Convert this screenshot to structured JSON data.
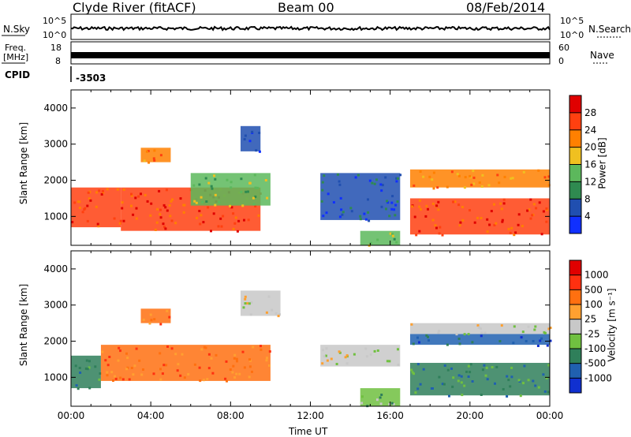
{
  "header": {
    "station": "Clyde River (fitACF)",
    "beam": "Beam 00",
    "date": "08/Feb/2014"
  },
  "top_panels": {
    "nsky": {
      "left_label": "N.Sky",
      "right_label": "N.Search",
      "y_ticks_left": [
        "10^5",
        "10^0"
      ],
      "y_ticks_right": [
        "10^5",
        "10^0"
      ]
    },
    "freq": {
      "left_label_1": "Freq.",
      "left_label_2": "[MHz]",
      "right_label": "Nave",
      "y_ticks_left": [
        "18",
        "8"
      ],
      "y_ticks_right": [
        "60",
        "0"
      ]
    },
    "cpid": {
      "label": "CPID",
      "value": "-3503"
    }
  },
  "chart_data": [
    {
      "type": "heatmap",
      "name": "power",
      "ylabel": "Slant Range [km]",
      "ylim": [
        200,
        4500
      ],
      "y_ticks": [
        1000,
        2000,
        3000,
        4000
      ],
      "colorbar": {
        "label": "Power [dB]",
        "ticks": [
          "4",
          "8",
          "12",
          "16",
          "20",
          "24",
          "28"
        ],
        "colors": [
          "#1030ff",
          "#204fb0",
          "#2f8a50",
          "#5cb85c",
          "#f0c020",
          "#ff8000",
          "#ff4010",
          "#e00000"
        ]
      },
      "regions": [
        {
          "t0": 0.0,
          "t1": 2.5,
          "r0": 700,
          "r1": 1800,
          "level": 6
        },
        {
          "t0": 2.5,
          "t1": 9.5,
          "r0": 600,
          "r1": 1800,
          "level": 6
        },
        {
          "t0": 3.5,
          "t1": 5.0,
          "r0": 2500,
          "r1": 2900,
          "level": 5
        },
        {
          "t0": 6.0,
          "t1": 10.0,
          "r0": 1300,
          "r1": 2200,
          "level": 3
        },
        {
          "t0": 8.5,
          "t1": 9.5,
          "r0": 2800,
          "r1": 3500,
          "level": 1
        },
        {
          "t0": 12.5,
          "t1": 16.5,
          "r0": 900,
          "r1": 2200,
          "level": 1
        },
        {
          "t0": 14.5,
          "t1": 16.5,
          "r0": 200,
          "r1": 600,
          "level": 3
        },
        {
          "t0": 17.0,
          "t1": 24.0,
          "r0": 500,
          "r1": 1500,
          "level": 6
        },
        {
          "t0": 17.0,
          "t1": 24.0,
          "r0": 1800,
          "r1": 2300,
          "level": 5
        }
      ]
    },
    {
      "type": "heatmap",
      "name": "velocity",
      "ylabel": "Slant Range [km]",
      "ylim": [
        200,
        4500
      ],
      "y_ticks": [
        1000,
        2000,
        3000,
        4000
      ],
      "colorbar": {
        "label": "Velocity [m s⁻¹]",
        "ticks": [
          "1000",
          "500",
          "100",
          "25",
          "-25",
          "-100",
          "-500",
          "-1000"
        ],
        "colors": [
          "#1030d0",
          "#2060b0",
          "#2f7f5a",
          "#70c040",
          "#c8c8c8",
          "#ffa030",
          "#ff7010",
          "#ff3010",
          "#e00000"
        ]
      },
      "regions": [
        {
          "t0": 0.0,
          "t1": 1.5,
          "r0": 700,
          "r1": 1600,
          "level": 2
        },
        {
          "t0": 1.5,
          "t1": 10.0,
          "r0": 900,
          "r1": 1900,
          "level": 6
        },
        {
          "t0": 3.5,
          "t1": 5.0,
          "r0": 2500,
          "r1": 2900,
          "level": 6
        },
        {
          "t0": 8.5,
          "t1": 10.5,
          "r0": 2700,
          "r1": 3400,
          "level": 4
        },
        {
          "t0": 12.5,
          "t1": 16.5,
          "r0": 1300,
          "r1": 1900,
          "level": 4
        },
        {
          "t0": 14.5,
          "t1": 16.5,
          "r0": 200,
          "r1": 700,
          "level": 3
        },
        {
          "t0": 17.0,
          "t1": 24.0,
          "r0": 500,
          "r1": 1400,
          "level": 2
        },
        {
          "t0": 17.0,
          "t1": 24.0,
          "r0": 1900,
          "r1": 2200,
          "level": 1
        },
        {
          "t0": 17.0,
          "t1": 24.0,
          "r0": 2200,
          "r1": 2500,
          "level": 4
        }
      ]
    }
  ],
  "x_axis": {
    "label": "Time UT",
    "xlim": [
      0,
      24
    ],
    "ticks": [
      "00:00",
      "04:00",
      "08:00",
      "12:00",
      "16:00",
      "20:00",
      "00:00"
    ]
  }
}
